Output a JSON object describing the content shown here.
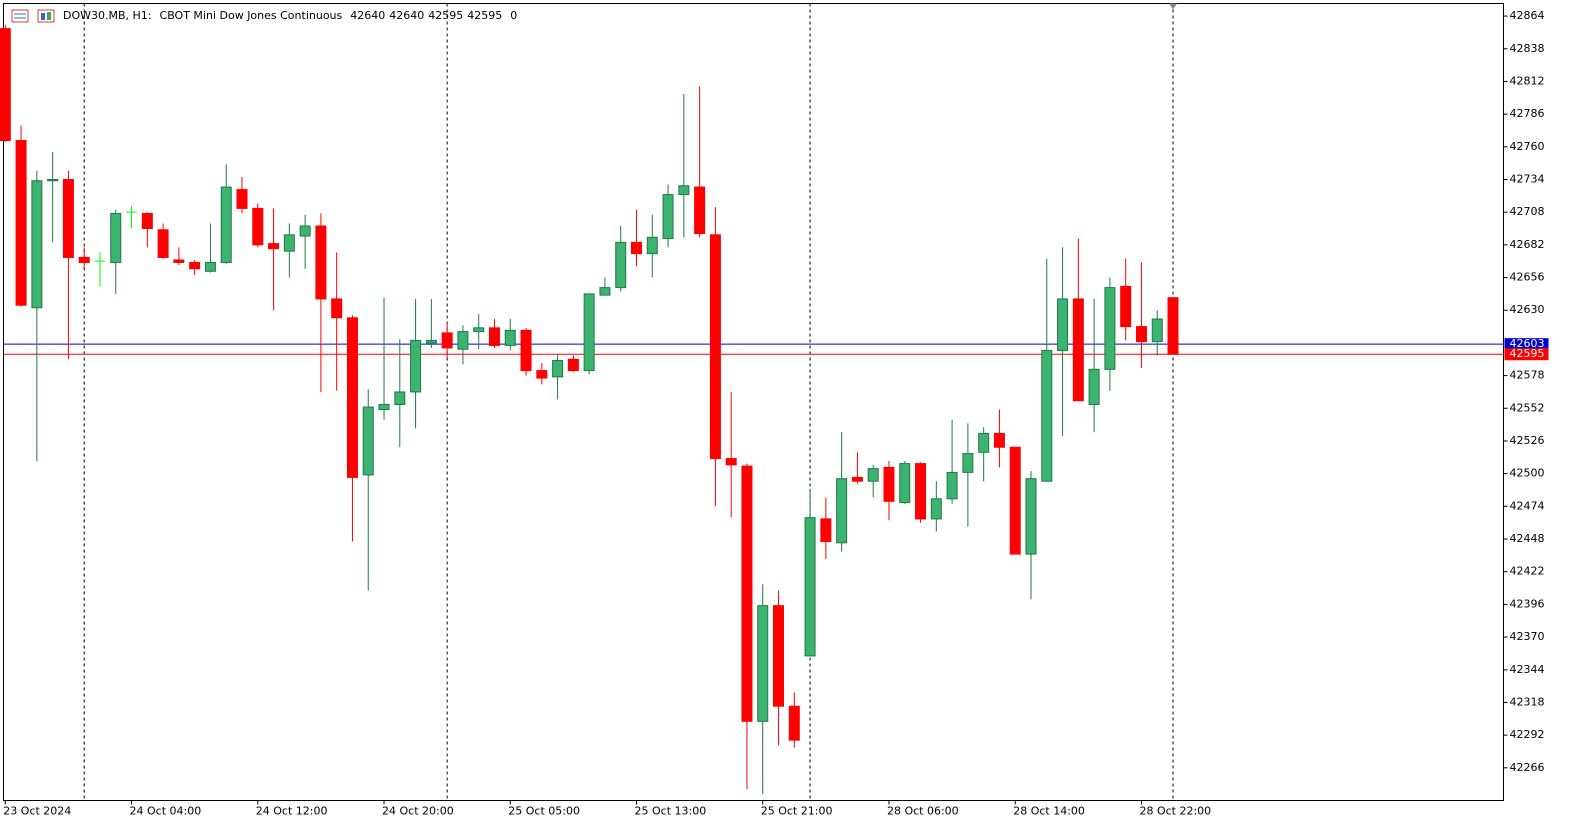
{
  "chart_data": {
    "type": "candlestick",
    "symbol": "DOW30.MB, H1:",
    "description": "CBOT Mini Dow Jones Continuous",
    "last_bar": [
      42640,
      42640,
      42595,
      42595
    ],
    "last_volume": 0,
    "categories": [
      "23 Oct 2024",
      null,
      null,
      null,
      null,
      null,
      null,
      null,
      "24 Oct 04:00",
      null,
      null,
      null,
      null,
      null,
      null,
      null,
      "24 Oct 12:00",
      null,
      null,
      null,
      null,
      null,
      null,
      null,
      "24 Oct 20:00",
      null,
      null,
      null,
      null,
      null,
      null,
      null,
      "25 Oct 05:00",
      null,
      null,
      null,
      null,
      null,
      null,
      null,
      "25 Oct 13:00",
      null,
      null,
      null,
      null,
      null,
      null,
      null,
      "25 Oct 21:00",
      null,
      null,
      null,
      null,
      null,
      null,
      null,
      "28 Oct 06:00",
      null,
      null,
      null,
      null,
      null,
      null,
      null,
      "28 Oct 14:00",
      null,
      null,
      null,
      null,
      null,
      null,
      null,
      "28 Oct 22:00",
      null,
      null
    ],
    "open": [
      42854,
      42765,
      42632,
      42733,
      42734,
      42672,
      42669,
      42668,
      42708,
      42707,
      42694,
      42670,
      42668,
      42661,
      42668,
      42726,
      42711,
      42683,
      42677,
      42689,
      42697,
      42639,
      42624,
      42499,
      42551,
      42555,
      42565,
      42604,
      42612,
      42599,
      42613,
      42616,
      42602,
      42614,
      42582,
      42577,
      42591,
      42582,
      42642,
      42648,
      42684,
      42675,
      42687,
      42722,
      42728,
      42690,
      42512,
      42506,
      42303,
      42395,
      42315,
      42355,
      42464,
      42445,
      42497,
      42494,
      42505,
      42477,
      42508,
      42464,
      42480,
      42501,
      42517,
      42532,
      42521,
      42436,
      42494,
      42598,
      42639,
      42555,
      42583,
      42649,
      42617,
      42605,
      42640
    ],
    "high": [
      42857,
      42777,
      42741,
      42756,
      42741,
      42680,
      42676,
      42710,
      42713,
      42708,
      42699,
      42680,
      42670,
      42699,
      42746,
      42736,
      42715,
      42711,
      42699,
      42706,
      42707,
      42676,
      42626,
      42567,
      42640,
      42607,
      42639,
      42639,
      42619,
      42618,
      42627,
      42623,
      42623,
      42616,
      42588,
      42595,
      42594,
      42643,
      42656,
      42697,
      42710,
      42706,
      42730,
      42802,
      42808,
      42712,
      42565,
      42508,
      42412,
      42407,
      42326,
      42488,
      42481,
      42533,
      42517,
      42507,
      42510,
      42510,
      42509,
      42494,
      42543,
      42540,
      42537,
      42551,
      42521,
      42502,
      42671,
      42680,
      42687,
      42639,
      42656,
      42671,
      42668,
      42630,
      42640
    ],
    "low": [
      42764,
      42633,
      42510,
      42684,
      42591,
      42664,
      42649,
      42643,
      42695,
      42680,
      42671,
      42666,
      42658,
      42660,
      42667,
      42707,
      42680,
      42630,
      42656,
      42663,
      42565,
      42566,
      42446,
      42407,
      42543,
      42521,
      42536,
      42600,
      42592,
      42587,
      42599,
      42600,
      42598,
      42578,
      42571,
      42559,
      42581,
      42579,
      42642,
      42645,
      42665,
      42656,
      42680,
      42688,
      42688,
      42474,
      42465,
      42249,
      42245,
      42284,
      42282,
      42355,
      42432,
      42438,
      42492,
      42481,
      42463,
      42476,
      42461,
      42454,
      42476,
      42458,
      42494,
      42505,
      42436,
      42400,
      42494,
      42530,
      42558,
      42533,
      42566,
      42606,
      42584,
      42594,
      42595
    ],
    "close": [
      42765,
      42634,
      42733,
      42734,
      42672,
      42668,
      42669,
      42707,
      42708,
      42695,
      42672,
      42668,
      42663,
      42668,
      42728,
      42711,
      42682,
      42679,
      42690,
      42697,
      42639,
      42624,
      42497,
      42553,
      42555,
      42565,
      42606,
      42606,
      42600,
      42613,
      42616,
      42602,
      42614,
      42582,
      42576,
      42590,
      42582,
      42643,
      42648,
      42684,
      42675,
      42688,
      42722,
      42729,
      42691,
      42512,
      42507,
      42303,
      42395,
      42315,
      42288,
      42465,
      42446,
      42496,
      42494,
      42504,
      42478,
      42508,
      42464,
      42480,
      42501,
      42516,
      42532,
      42521,
      42436,
      42496,
      42598,
      42639,
      42558,
      42583,
      42648,
      42617,
      42605,
      42623,
      42595
    ],
    "colors": {
      "up": "#3cb371",
      "up_line": "#1f7a43",
      "down": "#ff0000",
      "doji": "#00ff00"
    },
    "ylim": [
      42240,
      42874
    ],
    "yticks": [
      42864,
      42838,
      42812,
      42786,
      42760,
      42734,
      42708,
      42682,
      42656,
      42630,
      42578,
      42552,
      42526,
      42500,
      42474,
      42448,
      42422,
      42396,
      42370,
      42344,
      42318,
      42292,
      42266
    ],
    "price_lines": [
      {
        "value": 42603,
        "color": "#0000cd"
      },
      {
        "value": 42595,
        "color": "#ff0000"
      }
    ]
  }
}
